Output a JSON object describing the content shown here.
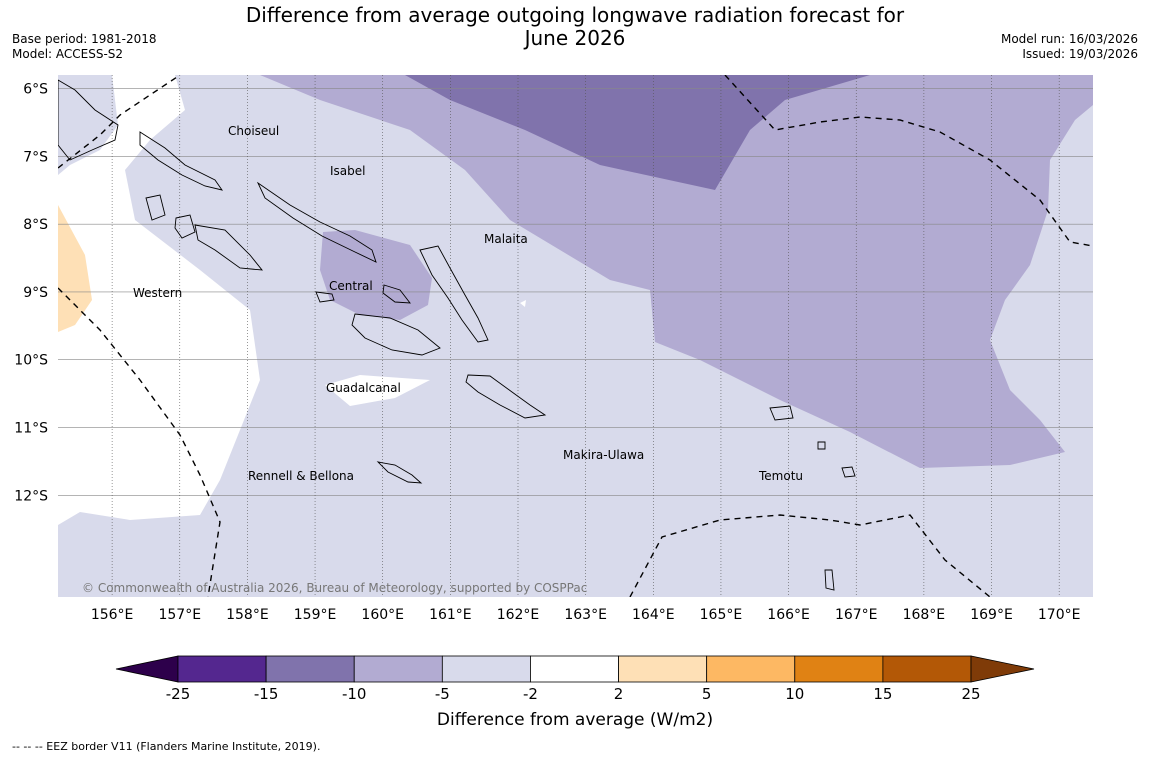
{
  "title": {
    "line1": "Difference from average outgoing longwave radiation forecast for",
    "line2": "June 2026"
  },
  "meta": {
    "base_period": "Base period: 1981-2018",
    "model": "Model: ACCESS-S2",
    "model_run": "Model run: 16/03/2026",
    "issued": "Issued: 19/03/2026"
  },
  "map": {
    "lat_labels": [
      "6°S",
      "7°S",
      "8°S",
      "9°S",
      "10°S",
      "11°S",
      "12°S"
    ],
    "lat_values": [
      -6,
      -7,
      -8,
      -9,
      -10,
      -11,
      -12
    ],
    "lon_labels": [
      "156°E",
      "157°E",
      "158°E",
      "159°E",
      "160°E",
      "161°E",
      "162°E",
      "163°E",
      "164°E",
      "165°E",
      "166°E",
      "167°E",
      "168°E",
      "169°E",
      "170°E"
    ],
    "lon_values": [
      156,
      157,
      158,
      159,
      160,
      161,
      162,
      163,
      164,
      165,
      166,
      167,
      168,
      169,
      170
    ],
    "lon_range": [
      155.2,
      170.5
    ],
    "lat_range": [
      -5.8,
      -13.5
    ],
    "region_labels": {
      "choiseul": "Choiseul",
      "isabel": "Isabel",
      "malaita": "Malaita",
      "western": "Western",
      "central": "Central",
      "guadalcanal": "Guadalcanal",
      "makira": "Makira-Ulawa",
      "rennell": "Rennell & Bellona",
      "temotu": "Temotu"
    },
    "copyright": "© Commonwealth of Australia 2026, Bureau of Meteorology, supported by COSPPac"
  },
  "colorbar": {
    "ticks": [
      "-25",
      "-15",
      "-10",
      "-5",
      "-2",
      "2",
      "5",
      "10",
      "15",
      "25"
    ],
    "colors": [
      "#54278f",
      "#8073ac",
      "#b2abd2",
      "#d8daeb",
      "#ffffff",
      "#fee0b6",
      "#fdb863",
      "#e08214",
      "#b35806"
    ],
    "low_extend_color": "#2d004b",
    "high_extend_color": "#7f3b08",
    "title": "Difference from average (W/m2)"
  },
  "footer": "--  --  -- EEZ border V11 (Flanders Marine Institute, 2019)."
}
